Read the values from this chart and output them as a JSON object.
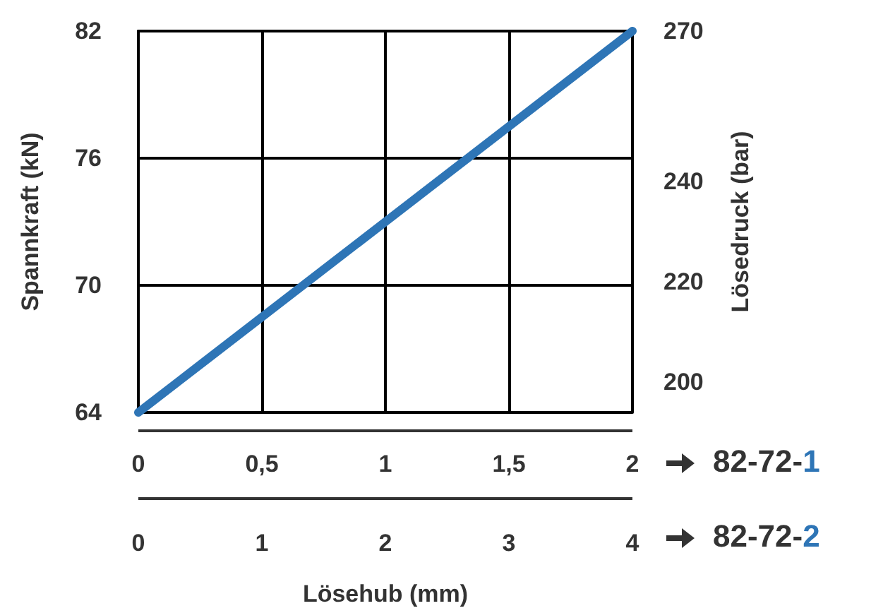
{
  "chart_data": {
    "type": "line",
    "ylabel": "Spannkraft (kN)",
    "y2label": "Lösedruck (bar)",
    "xlabel": "Lösehub (mm)",
    "x": [
      0,
      2
    ],
    "series": [
      {
        "color": "#2e75b6",
        "values": [
          64,
          82
        ]
      }
    ],
    "xlim": [
      0,
      2
    ],
    "xticks": [
      0,
      {
        "value": 0.5,
        "label": "0,5"
      },
      1,
      {
        "value": 1.5,
        "label": "1,5"
      },
      2
    ],
    "x2lim": [
      0,
      4
    ],
    "x2ticks": [
      0,
      1,
      2,
      3,
      4
    ],
    "ylim": [
      64,
      82
    ],
    "yticks": [
      64,
      70,
      76,
      82
    ],
    "y2lim": [
      194,
      270
    ],
    "y2ticks": [
      200,
      220,
      240,
      270
    ],
    "grid": true,
    "marker": "none",
    "line_style": "solid",
    "annotations": [
      "82-72-1",
      "82-72-2"
    ]
  }
}
